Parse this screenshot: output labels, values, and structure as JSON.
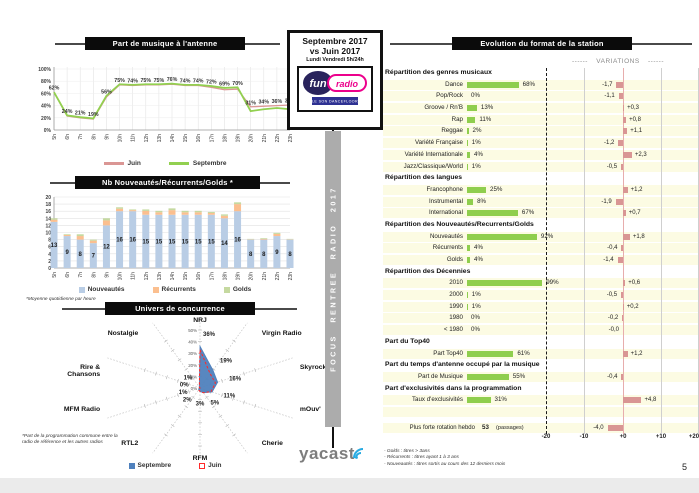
{
  "page": {
    "number": "5"
  },
  "header_box": {
    "line1": "Septembre 2017",
    "line2": "vs Juin 2017",
    "subtitle": "Lundi Vendredi 5h/24h",
    "logo": {
      "part1": "fun",
      "part2": "radio",
      "tagline": "LE SON DANCEFLOOR"
    }
  },
  "banner": {
    "text": "FOCUS RENTREE RADIO 2017"
  },
  "footer_logo": {
    "text": "yacast"
  },
  "colors": {
    "juin_line": "#DA9694",
    "septembre_line": "#92D050",
    "nouveautes_bar": "#B9CDE5",
    "recurrents_bar": "#FBBF8F",
    "golds_bar": "#C5D9A0",
    "radar_septembre": "#4F81BD",
    "radar_juin": "#FF2A2A",
    "table_green_bar": "#8FCE4E",
    "table_red_bar": "#D99694",
    "row_bg": "#FCFBE3",
    "logo_pink": "#EC008C",
    "logo_navy": "#29235C",
    "yacast_blue": "#29ABE2"
  },
  "chart_data": [
    {
      "type": "line",
      "title": "Part de musique à l'antenne",
      "x": [
        "5h",
        "6h",
        "7h",
        "8h",
        "9h",
        "10h",
        "11h",
        "12h",
        "13h",
        "14h",
        "15h",
        "16h",
        "17h",
        "18h",
        "19h",
        "20h",
        "21h",
        "22h",
        "23h"
      ],
      "series": [
        {
          "name": "Juin",
          "color": "#DA9694",
          "values": [
            62,
            23,
            20,
            18,
            54,
            74,
            73,
            74,
            74,
            75,
            73,
            73,
            70,
            66,
            67,
            38,
            39,
            40,
            41
          ]
        },
        {
          "name": "Septembre",
          "color": "#92D050",
          "values": [
            62,
            24,
            21,
            19,
            56,
            75,
            74,
            75,
            75,
            76,
            74,
            74,
            72,
            69,
            70,
            31,
            34,
            36,
            34
          ]
        }
      ],
      "point_labels": [
        "62%",
        "24%",
        "21%",
        "19%",
        "56%",
        "75%",
        "74%",
        "75%",
        "75%",
        "76%",
        "74%",
        "74%",
        "72%",
        "69%",
        "70%",
        "31%",
        "34%",
        "36%",
        "34%"
      ],
      "ylim": [
        0,
        100
      ],
      "yticks": [
        "0%",
        "20%",
        "40%",
        "60%",
        "80%",
        "100%"
      ],
      "legend_position": "bottom"
    },
    {
      "type": "bar",
      "title": "Nb Nouveautés/Récurrents/Golds *",
      "x": [
        "5h",
        "6h",
        "7h",
        "8h",
        "9h",
        "10h",
        "11h",
        "12h",
        "13h",
        "14h",
        "15h",
        "16h",
        "17h",
        "18h",
        "19h",
        "20h",
        "21h",
        "22h",
        "23h"
      ],
      "series": [
        {
          "name": "Nouveautés",
          "color": "#B9CDE5",
          "values": [
            13,
            9,
            8,
            7,
            12,
            16,
            16,
            15,
            15,
            15,
            15,
            15,
            15,
            14,
            16,
            8,
            8,
            9,
            8
          ]
        },
        {
          "name": "Récurrents",
          "color": "#FBBF8F",
          "values": [
            0.6,
            0.3,
            1.0,
            0.7,
            1.4,
            0.7,
            0.3,
            1.1,
            0.7,
            1.3,
            0.7,
            0.7,
            0.5,
            0.7,
            2.0,
            0.1,
            0.2,
            0.6,
            0.1
          ]
        },
        {
          "name": "Golds",
          "color": "#C5D9A0",
          "values": [
            0.4,
            0.2,
            0.5,
            0.3,
            0.6,
            0.4,
            0.2,
            0.4,
            0.4,
            0.5,
            0.4,
            0.4,
            0.3,
            0.4,
            0.5,
            0.1,
            0.2,
            0.3,
            0.1
          ]
        }
      ],
      "bar_labels": [
        "13",
        "9",
        "8",
        "7",
        "12",
        "16",
        "16",
        "15",
        "15",
        "15",
        "15",
        "15",
        "15",
        "14",
        "16",
        "8",
        "8",
        "9",
        "8"
      ],
      "ylim": [
        0,
        20
      ],
      "yticks": [
        "0",
        "2",
        "4",
        "6",
        "8",
        "10",
        "12",
        "14",
        "16",
        "18",
        "20"
      ],
      "footnote": "*Moyenne quotidienne par heure",
      "legend_position": "bottom"
    },
    {
      "type": "radar",
      "title": "Univers de concurrence",
      "categories": [
        "NRJ",
        "Virgin Radio",
        "Skyrock",
        "mOuv'",
        "Cherie",
        "RFM",
        "RTL2",
        "MFM Radio",
        "Rire & Chansons",
        "Nostalgie"
      ],
      "category_lines": [
        [
          "NRJ"
        ],
        [
          "Virgin Radio"
        ],
        [
          "Skyrock"
        ],
        [
          "mOuv'"
        ],
        [
          "Cherie"
        ],
        [
          "RFM"
        ],
        [
          "RTL2"
        ],
        [
          "MFM Radio"
        ],
        [
          "Rire &",
          "Chansons"
        ],
        [
          "Nostalgie"
        ]
      ],
      "series": [
        {
          "name": "Septembre",
          "color": "#4F81BD",
          "fill": true,
          "values": [
            36,
            19,
            16,
            11,
            5,
            3,
            2,
            1,
            0,
            1
          ]
        },
        {
          "name": "Juin",
          "color": "#FF2A2A",
          "dashed": true,
          "values": [
            33,
            15,
            14,
            10,
            5,
            3,
            2,
            1,
            0,
            1
          ]
        }
      ],
      "value_labels": [
        "36%",
        "19%",
        "16%",
        "11%",
        "5%",
        "3%",
        "2%",
        "1%",
        "0%",
        "1%"
      ],
      "rticks": [
        "0%",
        "10%",
        "20%",
        "30%",
        "40%",
        "50%"
      ],
      "rlim": [
        0,
        50
      ],
      "footnote": "*Part de la programmation commune entre la radio de référence et les autres radios"
    },
    {
      "type": "table",
      "title": "Evolution du format de la station",
      "variations_header": "VARIATIONS",
      "variations_dashes": "------",
      "axis_ticks": [
        "-20",
        "-10",
        "+0",
        "+10",
        "+20"
      ],
      "axis_range": [
        -20,
        20
      ],
      "sections": [
        {
          "heading": "Répartition des genres musicaux",
          "rows": [
            {
              "label": "Dance",
              "value": 68,
              "value_label": "68%",
              "variation": -1.7,
              "variation_label": "-1,7"
            },
            {
              "label": "Pop/Rock",
              "value": 0,
              "value_label": "0%",
              "variation": -1.1,
              "variation_label": "-1,1"
            },
            {
              "label": "Groove / Rn'B",
              "value": 13,
              "value_label": "13%",
              "variation": 0.3,
              "variation_label": "+0,3"
            },
            {
              "label": "Rap",
              "value": 11,
              "value_label": "11%",
              "variation": 0.8,
              "variation_label": "+0,8"
            },
            {
              "label": "Reggae",
              "value": 2,
              "value_label": "2%",
              "variation": 1.1,
              "variation_label": "+1,1"
            },
            {
              "label": "Variété Française",
              "value": 1,
              "value_label": "1%",
              "variation": -1.2,
              "variation_label": "-1,2"
            },
            {
              "label": "Variété Internationale",
              "value": 4,
              "value_label": "4%",
              "variation": 2.3,
              "variation_label": "+2,3"
            },
            {
              "label": "Jazz/Classique/World",
              "value": 1,
              "value_label": "1%",
              "variation": -0.5,
              "variation_label": "-0,5"
            }
          ]
        },
        {
          "heading": "Répartition des langues",
          "rows": [
            {
              "label": "Francophone",
              "value": 25,
              "value_label": "25%",
              "variation": 1.2,
              "variation_label": "+1,2"
            },
            {
              "label": "Instrumental",
              "value": 8,
              "value_label": "8%",
              "variation": -1.9,
              "variation_label": "-1,9"
            },
            {
              "label": "International",
              "value": 67,
              "value_label": "67%",
              "variation": 0.7,
              "variation_label": "+0,7"
            }
          ]
        },
        {
          "heading": "Répartition des Nouveautés/Recurrents/Golds",
          "rows": [
            {
              "label": "Nouveautés",
              "value": 92,
              "value_label": "92%",
              "variation": 1.8,
              "variation_label": "+1,8"
            },
            {
              "label": "Récurrents",
              "value": 4,
              "value_label": "4%",
              "variation": -0.4,
              "variation_label": "-0,4"
            },
            {
              "label": "Golds",
              "value": 4,
              "value_label": "4%",
              "variation": -1.4,
              "variation_label": "-1,4"
            }
          ]
        },
        {
          "heading": "Répartition des Décennies",
          "rows": [
            {
              "label": "2010",
              "value": 99,
              "value_label": "99%",
              "variation": 0.6,
              "variation_label": "+0,6"
            },
            {
              "label": "2000",
              "value": 1,
              "value_label": "1%",
              "variation": -0.5,
              "variation_label": "-0,5"
            },
            {
              "label": "1990",
              "value": 1,
              "value_label": "1%",
              "variation": 0.2,
              "variation_label": "+0,2"
            },
            {
              "label": "1980",
              "value": 0,
              "value_label": "0%",
              "variation": -0.2,
              "variation_label": "-0,2"
            },
            {
              "label": "< 1980",
              "value": 0,
              "value_label": "0%",
              "variation": -0.0,
              "variation_label": "-0,0"
            }
          ]
        },
        {
          "heading": "Part du Top40",
          "rows": [
            {
              "label": "Part Top40",
              "value": 61,
              "value_label": "61%",
              "variation": 1.2,
              "variation_label": "+1,2"
            }
          ]
        },
        {
          "heading": "Part du temps d'antenne occupé par la musique",
          "rows": [
            {
              "label": "Part de Musique",
              "value": 55,
              "value_label": "55%",
              "variation": -0.4,
              "variation_label": "-0,4"
            }
          ]
        },
        {
          "heading": "Part d'exclusivités dans la programmation",
          "rows": [
            {
              "label": "Taux d'exclusivités",
              "value": 31,
              "value_label": "31%",
              "variation": 4.8,
              "variation_label": "+4,8"
            }
          ]
        }
      ],
      "extra_row": {
        "label": "Plus forte rotation hebdo",
        "value_label": "53",
        "value_suffix": "(passages)",
        "variation": -4.0,
        "variation_label": "-4,0"
      },
      "footnotes": [
        "- Golds : titres > 3ans",
        "- Récurrents : titres ayant 1 à 3 ans",
        "- Nouveautés : titres sortis au cours des 12 derniers mois"
      ]
    }
  ]
}
